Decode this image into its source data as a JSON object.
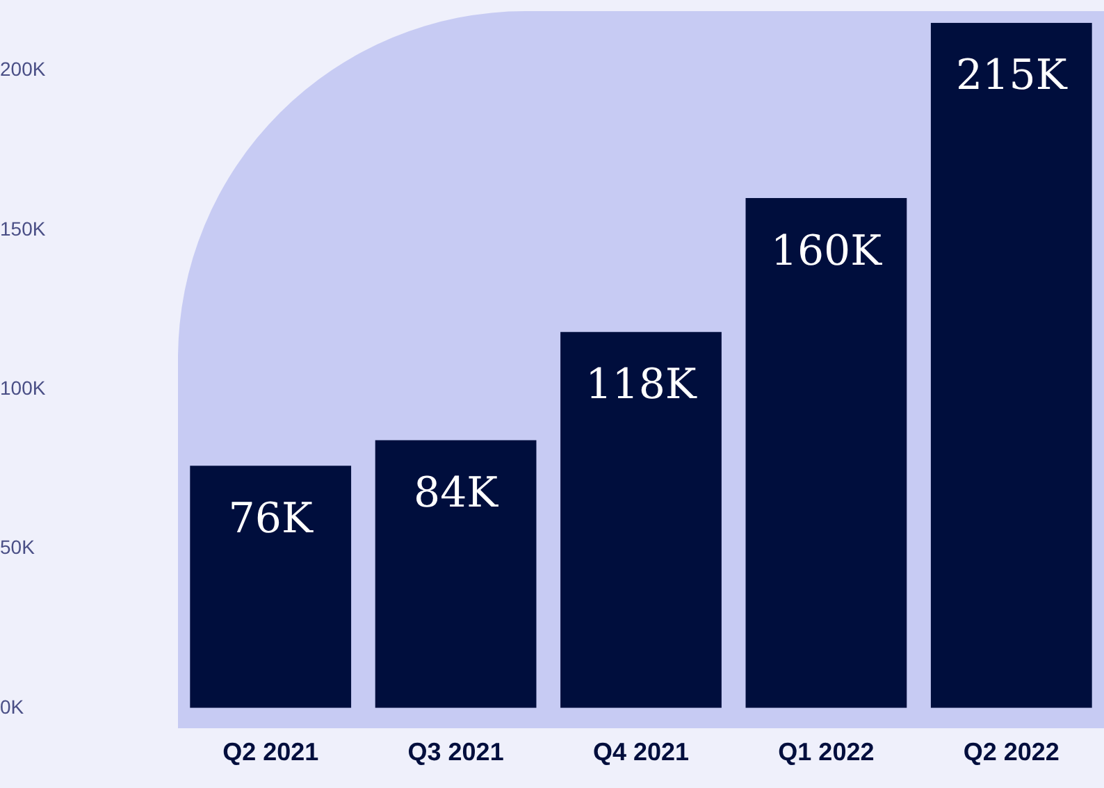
{
  "chart_data": {
    "type": "bar",
    "categories": [
      "Q2 2021",
      "Q3 2021",
      "Q4 2021",
      "Q1 2022",
      "Q2 2022"
    ],
    "values": [
      76,
      84,
      118,
      160,
      215
    ],
    "value_labels": [
      "76K",
      "84K",
      "118K",
      "160K",
      "215K"
    ],
    "color": "#000e3d",
    "ylim": [
      0,
      215
    ],
    "yticks": [
      {
        "value": 0,
        "label": "0K"
      },
      {
        "value": 50,
        "label": "50K"
      },
      {
        "value": 100,
        "label": "100K"
      },
      {
        "value": 150,
        "label": "150K"
      },
      {
        "value": 200,
        "label": "200K"
      }
    ],
    "grid": false,
    "legend": false
  }
}
